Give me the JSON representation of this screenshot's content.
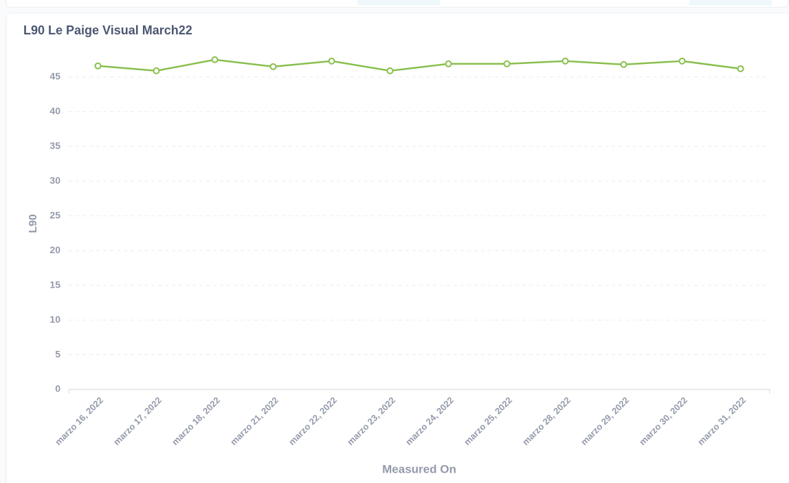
{
  "chart_data": {
    "type": "line",
    "title": "L90 Le Paige Visual March22",
    "categories": [
      "marzo 16, 2022",
      "marzo 17, 2022",
      "marzo 18, 2022",
      "marzo 21, 2022",
      "marzo 22, 2022",
      "marzo 23, 2022",
      "marzo 24, 2022",
      "marzo 25, 2022",
      "marzo 28, 2022",
      "marzo 29, 2022",
      "marzo 30, 2022",
      "marzo 31, 2022"
    ],
    "values": [
      46.6,
      45.9,
      47.5,
      46.5,
      47.3,
      45.9,
      46.9,
      46.9,
      47.3,
      46.8,
      47.3,
      46.2
    ],
    "color": "#88bf4d",
    "xlabel": "Measured On",
    "ylabel": "L90",
    "ylim": [
      0,
      48
    ],
    "yticks": [
      0,
      5,
      10,
      15,
      20,
      25,
      30,
      35,
      40,
      45
    ],
    "grid": true
  }
}
